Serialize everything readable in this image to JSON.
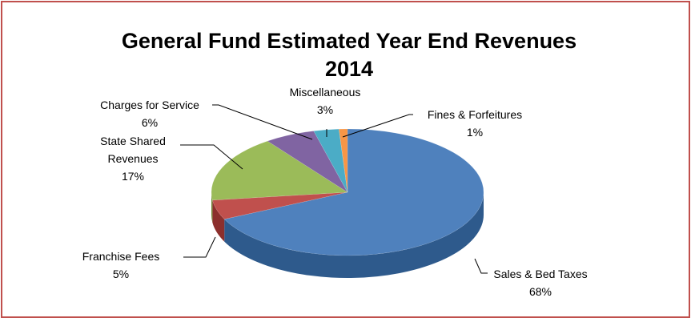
{
  "chart_data": {
    "type": "pie",
    "title_line1": "General Fund Estimated Year End Revenues",
    "title_line2": "2014",
    "slices": [
      {
        "label": "Sales & Bed Taxes",
        "value": 68,
        "pct_label": "68%",
        "color": "#4f81bd",
        "side": "#2e5a8c"
      },
      {
        "label": "Franchise Fees",
        "value": 5,
        "pct_label": "5%",
        "color": "#c0504d",
        "side": "#8c2f2d"
      },
      {
        "label_lines": [
          "State Shared",
          "Revenues"
        ],
        "label": "State Shared Revenues",
        "value": 17,
        "pct_label": "17%",
        "color": "#9bbb59",
        "side": "#6e8a35"
      },
      {
        "label": "Charges for Service",
        "value": 6,
        "pct_label": "6%",
        "color": "#8064a2",
        "side": "#5a4378"
      },
      {
        "label": "Miscellaneous",
        "value": 3,
        "pct_label": "3%",
        "color": "#4bacc6",
        "side": "#2f7d93"
      },
      {
        "label": "Fines & Forfeitures",
        "value": 1,
        "pct_label": "1%",
        "color": "#f79646",
        "side": "#c06a22"
      }
    ]
  }
}
